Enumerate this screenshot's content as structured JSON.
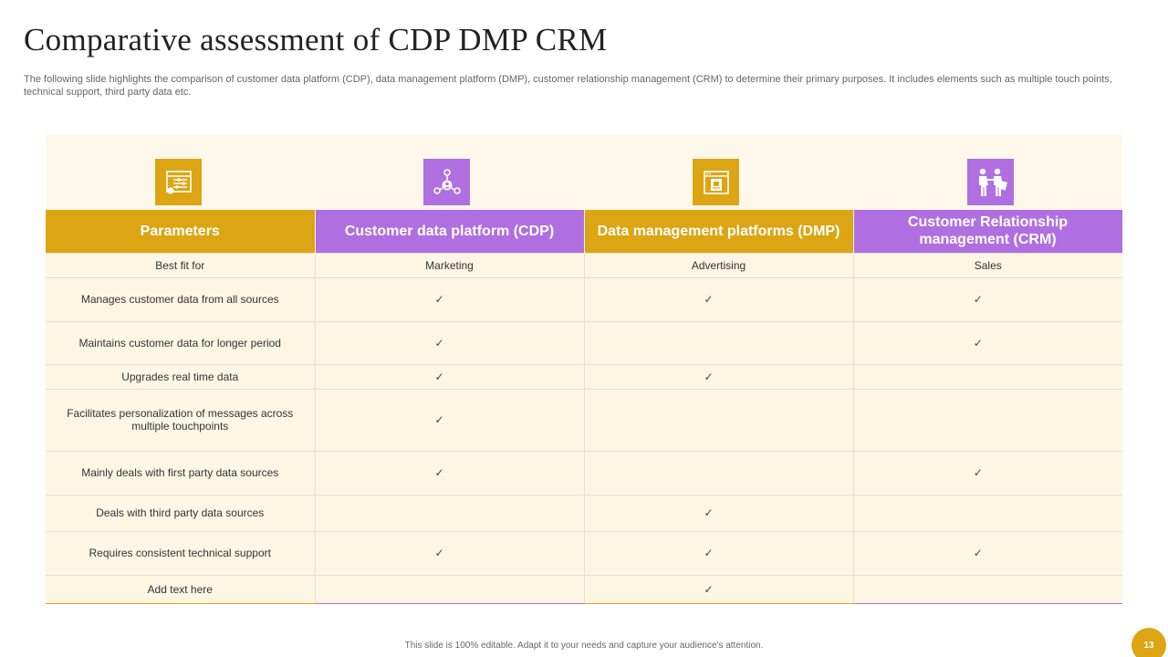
{
  "title": "Comparative assessment of CDP DMP CRM",
  "subtitle": "The following slide highlights the comparison of customer data platform (CDP), data management platform (DMP), customer relationship management (CRM) to determine their primary purposes. It includes elements such as multiple touch points, technical support, third party data etc.",
  "colors": {
    "gold": "#dba514",
    "purple": "#b06fe0",
    "panel": "#fdf8ea"
  },
  "icons": [
    "settings-panel-icon",
    "network-user-icon",
    "data-document-icon",
    "customer-handshake-icon"
  ],
  "table": {
    "headers": [
      "Parameters",
      "Customer data platform (CDP)",
      "Data management platforms (DMP)",
      "Customer Relationship management (CRM)"
    ],
    "check_mark": "✓",
    "rows": [
      {
        "param": "Best fit for",
        "cdp": "Marketing",
        "dmp": "Advertising",
        "crm": "Sales"
      },
      {
        "param": "Manages customer data from all sources",
        "cdp": "✓",
        "dmp": "✓",
        "crm": "✓"
      },
      {
        "param": "Maintains customer data for longer period",
        "cdp": "✓",
        "dmp": "",
        "crm": "✓"
      },
      {
        "param": "Upgrades real time data",
        "cdp": "✓",
        "dmp": "✓",
        "crm": ""
      },
      {
        "param": "Facilitates personalization of messages across multiple touchpoints",
        "cdp": "✓",
        "dmp": "",
        "crm": ""
      },
      {
        "param": "Mainly deals with first party data sources",
        "cdp": "✓",
        "dmp": "",
        "crm": "✓"
      },
      {
        "param": "Deals with third party data sources",
        "cdp": "",
        "dmp": "✓",
        "crm": ""
      },
      {
        "param": "Requires consistent technical support",
        "cdp": "✓",
        "dmp": "✓",
        "crm": "✓"
      },
      {
        "param": "Add text here",
        "cdp": "",
        "dmp": "✓",
        "crm": ""
      }
    ]
  },
  "footer": "This slide is 100% editable. Adapt it to your needs and capture your audience's attention.",
  "page_number": "13"
}
